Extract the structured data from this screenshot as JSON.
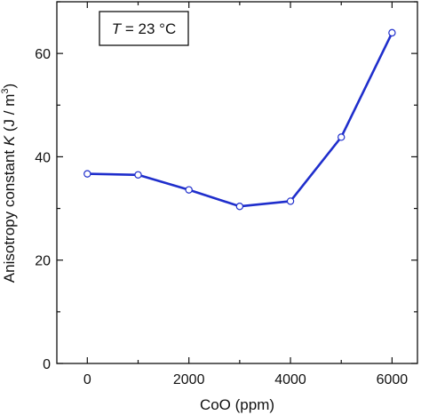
{
  "chart_data": {
    "type": "line",
    "title": "",
    "xlabel": "CoO (ppm)",
    "ylabel_prefix": "Anisotropy constant ",
    "ylabel_var": "K",
    "ylabel_unit": " (J / m",
    "ylabel_sup": "3",
    "ylabel_close": ")",
    "annotation": {
      "var": "T",
      "rest": " = 23 °C"
    },
    "x": [
      0,
      1000,
      2000,
      3000,
      4000,
      5000,
      6000
    ],
    "series": [
      {
        "values": [
          36.7,
          36.5,
          33.6,
          30.4,
          31.4,
          43.8,
          64.0
        ],
        "color": "#1f2ecc"
      }
    ],
    "xlim": [
      -600,
      6500
    ],
    "ylim": [
      0,
      70
    ],
    "xticks": [
      0,
      2000,
      4000,
      6000
    ],
    "xticks_minor": [
      1000,
      3000,
      5000
    ],
    "yticks": [
      0,
      20,
      40,
      60
    ],
    "yticks_minor": [
      10,
      30,
      50,
      70
    ],
    "grid": false,
    "legend": "none"
  }
}
